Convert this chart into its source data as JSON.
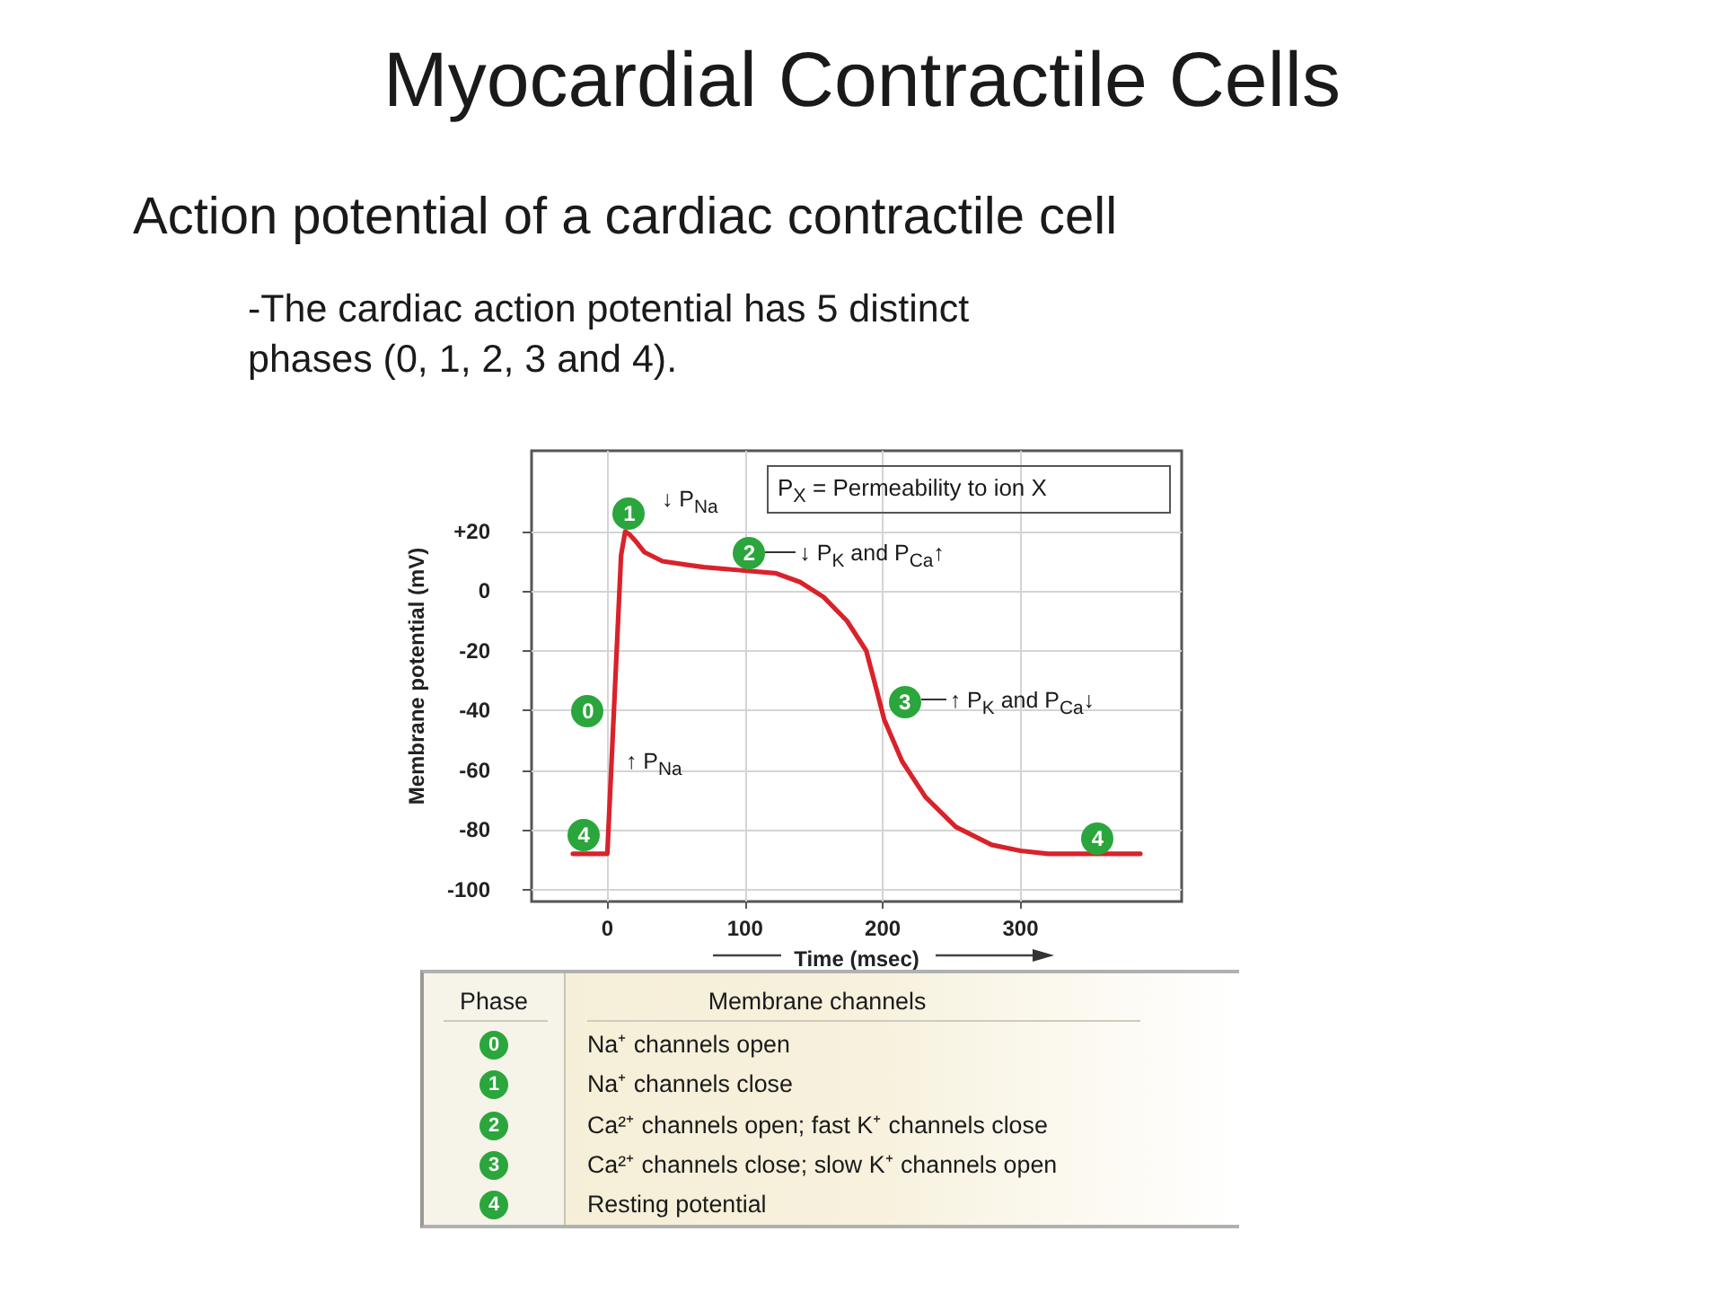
{
  "chart_data": {
    "type": "line",
    "title": "Myocardial Contractile Cells",
    "subtitle": "Action potential of a cardiac contractile cell",
    "xlabel": "Time (msec)",
    "ylabel": "Membrane potential (mV)",
    "x": [
      -25,
      0,
      10,
      13,
      16,
      20,
      27,
      40,
      70,
      96,
      122,
      140,
      157,
      174,
      188,
      196,
      201,
      214,
      231,
      253,
      279,
      300,
      320,
      387
    ],
    "values": [
      -88,
      -88,
      12,
      20,
      19,
      17,
      13,
      10,
      8,
      7,
      6,
      3,
      -2,
      -10,
      -20,
      -34,
      -43,
      -57,
      -69,
      -79,
      -85,
      -87,
      -88,
      -88
    ],
    "color": "#d9222b",
    "xlim": [
      -55,
      417
    ],
    "xticks": [
      0,
      100,
      200,
      300
    ],
    "ylim": [
      -104,
      47
    ],
    "yticks": [
      {
        "value": 20,
        "label": "+20"
      },
      0,
      -20,
      -40,
      -60,
      -80,
      -100
    ],
    "grid": true,
    "annotations": [
      "-The cardiac action potential has 5 distinct phases (0, 1, 2, 3 and 4).",
      "P$_{X}$ = Permeability to ion X",
      "Phase",
      "Membrane channels",
      "0",
      "Na⁺ channels open",
      "1",
      "Na⁺ channels close",
      "2",
      "Ca²⁺ channels open; fast K⁺ channels close",
      "3",
      "Ca²⁺ channels close; slow K⁺ channels open",
      "4",
      "Resting potential",
      {
        "text": "1",
        "x": 16,
        "y": 26
      },
      "↓ P$_{Na}$",
      {
        "text": "2",
        "x": 103,
        "y": 13
      },
      "↓ P$_{K}$ and P$_{Ca}$↑",
      {
        "text": "3",
        "x": 216,
        "y": -37
      },
      "↑ P$_{K}$ and P$_{Ca}$↓",
      {
        "text": "0",
        "x": -14,
        "y": -40
      },
      "↑ P$_{Na}$",
      {
        "text": "4",
        "x": -17,
        "y": -82
      },
      {
        "text": "4",
        "x": 356,
        "y": -83
      }
    ]
  }
}
